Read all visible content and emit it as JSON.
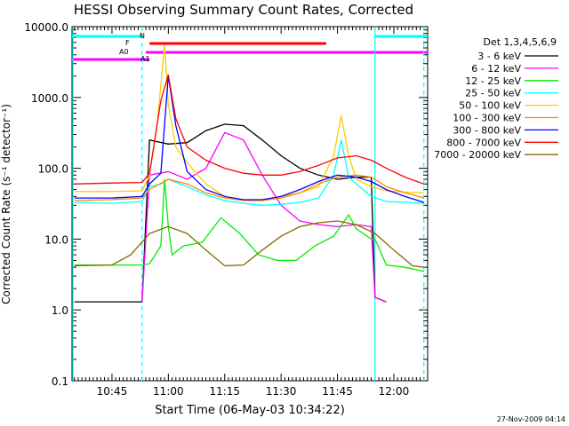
{
  "chart_data": {
    "type": "line",
    "title": "HESSI Observing Summary Count Rates, Corrected",
    "xlabel": "Start Time (06-May-03 10:34:22)",
    "ylabel": "Corrected Count Rate (s⁻¹ detector⁻¹)",
    "y_scale": "log",
    "ylim": [
      0.1,
      10000
    ],
    "xlim": [
      "10:34:22",
      "12:09:00"
    ],
    "x_ticks": [
      "10:45",
      "11:00",
      "11:15",
      "11:30",
      "11:45",
      "12:00"
    ],
    "y_ticks": [
      "0.1",
      "1.0",
      "10.0",
      "100.0",
      "1000.0",
      "10000.0"
    ],
    "timestamp": "27-Nov-2009 04:14",
    "legend_title": "Det 1,3,4,5,6,9",
    "series": [
      {
        "name": "3 - 6 keV",
        "color": "#000000",
        "x": [
          "10:35",
          "10:45",
          "10:53",
          "10:55",
          "11:00",
          "11:05",
          "11:10",
          "11:15",
          "11:20",
          "11:25",
          "11:30",
          "11:35",
          "11:40",
          "11:45",
          "11:50",
          "11:54",
          "11:55",
          "11:58"
        ],
        "y": [
          1.3,
          1.3,
          1.3,
          250,
          220,
          230,
          340,
          420,
          400,
          250,
          150,
          100,
          80,
          70,
          75,
          75,
          1.5,
          1.3
        ]
      },
      {
        "name": "6 - 12 keV",
        "color": "#ff00ff",
        "x": [
          "10:53",
          "10:55",
          "11:00",
          "11:05",
          "11:10",
          "11:15",
          "11:20",
          "11:25",
          "11:30",
          "11:35",
          "11:40",
          "11:45",
          "11:50",
          "11:54",
          "11:55",
          "11:58"
        ],
        "y": [
          1.3,
          80,
          90,
          70,
          100,
          320,
          250,
          80,
          30,
          18,
          16,
          15,
          16,
          15,
          1.5,
          1.3
        ]
      },
      {
        "name": "12 - 25 keV",
        "color": "#00ee00",
        "x": [
          "10:35",
          "10:45",
          "10:53",
          "10:55",
          "10:58",
          "10:59",
          "11:00",
          "11:01",
          "11:04",
          "11:09",
          "11:14",
          "11:19",
          "11:24",
          "11:29",
          "11:34",
          "11:39",
          "11:44",
          "11:48",
          "11:50",
          "11:54",
          "11:55",
          "11:58",
          "12:03",
          "12:08"
        ],
        "y": [
          4.3,
          4.3,
          4.3,
          4.5,
          8,
          70,
          15,
          6,
          8,
          9,
          20,
          12,
          6,
          5,
          5,
          8,
          11,
          22,
          14,
          10,
          10,
          4.3,
          4,
          3.5
        ]
      },
      {
        "name": "25 - 50 keV",
        "color": "#00ffff",
        "x": [
          "10:35",
          "10:45",
          "10:53",
          "10:55",
          "10:58",
          "11:00",
          "11:05",
          "11:10",
          "11:15",
          "11:20",
          "11:25",
          "11:30",
          "11:35",
          "11:40",
          "11:44",
          "11:46",
          "11:48",
          "11:50",
          "11:54",
          "11:58",
          "12:03",
          "12:08"
        ],
        "y": [
          33,
          32,
          34,
          55,
          60,
          70,
          55,
          42,
          35,
          32,
          30,
          31,
          33,
          38,
          80,
          250,
          75,
          60,
          40,
          34,
          33,
          32
        ]
      },
      {
        "name": "50 - 100 keV",
        "color": "#ffcc00",
        "x": [
          "10:35",
          "10:45",
          "10:53",
          "10:55",
          "10:57",
          "10:59",
          "11:00",
          "11:02",
          "11:05",
          "11:10",
          "11:15",
          "11:20",
          "11:25",
          "11:30",
          "11:35",
          "11:40",
          "11:44",
          "11:46",
          "11:48",
          "11:50",
          "11:54",
          "11:58",
          "12:03",
          "12:08"
        ],
        "y": [
          47,
          47,
          48,
          80,
          400,
          5500,
          800,
          200,
          120,
          60,
          40,
          36,
          36,
          40,
          45,
          55,
          150,
          550,
          150,
          70,
          55,
          48,
          46,
          45
        ]
      },
      {
        "name": "100 - 300 keV",
        "color": "#ff8800",
        "x": [
          "10:35",
          "10:45",
          "10:53",
          "10:55",
          "11:00",
          "11:05",
          "11:10",
          "11:15",
          "11:20",
          "11:25",
          "11:30",
          "11:35",
          "11:40",
          "11:45",
          "11:50",
          "11:54",
          "11:58",
          "12:03",
          "12:08"
        ],
        "y": [
          35,
          36,
          38,
          50,
          70,
          60,
          45,
          38,
          35,
          35,
          38,
          45,
          60,
          75,
          80,
          75,
          55,
          45,
          38
        ]
      },
      {
        "name": "300 - 800 keV",
        "color": "#0000ff",
        "x": [
          "10:35",
          "10:45",
          "10:53",
          "10:55",
          "10:58",
          "11:00",
          "11:02",
          "11:05",
          "11:10",
          "11:15",
          "11:20",
          "11:25",
          "11:30",
          "11:35",
          "11:40",
          "11:45",
          "11:50",
          "11:54",
          "11:58",
          "12:03",
          "12:08"
        ],
        "y": [
          38,
          38,
          40,
          60,
          85,
          2000,
          400,
          90,
          50,
          40,
          36,
          36,
          40,
          50,
          65,
          80,
          75,
          65,
          50,
          40,
          33
        ]
      },
      {
        "name": "800 - 7000 keV",
        "color": "#ff0000",
        "x": [
          "10:35",
          "10:45",
          "10:53",
          "10:55",
          "10:58",
          "11:00",
          "11:02",
          "11:05",
          "11:10",
          "11:15",
          "11:20",
          "11:25",
          "11:30",
          "11:35",
          "11:40",
          "11:45",
          "11:50",
          "11:54",
          "11:58",
          "12:03",
          "12:08"
        ],
        "y": [
          60,
          62,
          63,
          85,
          900,
          2100,
          500,
          200,
          130,
          100,
          85,
          80,
          80,
          90,
          110,
          140,
          150,
          130,
          100,
          75,
          60
        ]
      },
      {
        "name": "7000 - 20000 keV",
        "color": "#886600",
        "x": [
          "10:35",
          "10:45",
          "10:50",
          "10:55",
          "11:00",
          "11:05",
          "11:10",
          "11:15",
          "11:20",
          "11:25",
          "11:30",
          "11:35",
          "11:40",
          "11:45",
          "11:50",
          "11:55",
          "12:00",
          "12:05",
          "12:08"
        ],
        "y": [
          4.2,
          4.3,
          6,
          12,
          15,
          12,
          7,
          4.2,
          4.3,
          7,
          11,
          15,
          17,
          18,
          16,
          12,
          7,
          4.2,
          4.0
        ]
      }
    ],
    "flag_bars": [
      {
        "label": "N",
        "color": "#00ffff",
        "segments": [
          [
            "10:34",
            "10:53"
          ],
          [
            "11:55",
            "12:09"
          ]
        ]
      },
      {
        "label": "F",
        "color": "#ff0000",
        "segments": [
          [
            "10:55",
            "11:42"
          ]
        ]
      },
      {
        "label": "A0",
        "color": "#ff00ff",
        "segments": [
          [
            "10:54",
            "12:09"
          ]
        ]
      },
      {
        "label": "A1",
        "color": "#ff00ff",
        "segments": [
          [
            "10:34",
            "10:55"
          ]
        ]
      }
    ],
    "vlines": [
      {
        "t": "10:34",
        "style": "solid"
      },
      {
        "t": "10:53",
        "style": "dashed"
      },
      {
        "t": "11:55",
        "style": "solid"
      },
      {
        "t": "12:08",
        "style": "dashed"
      }
    ]
  }
}
